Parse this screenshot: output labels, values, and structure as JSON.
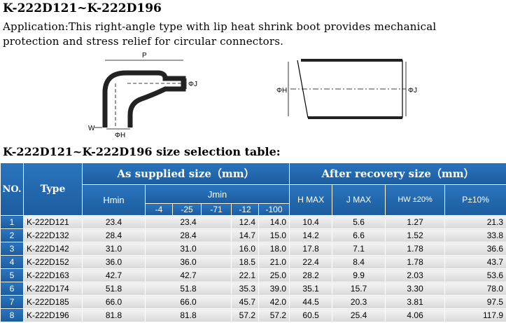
{
  "header": {
    "title": "K-222D121~K-222D196",
    "application": "Application:This right-angle type with lip heat shrink boot provides mechanical protection and stress relief for circular connectors."
  },
  "diagram_left": {
    "p": "P",
    "j": "ΦJ",
    "w": "W",
    "h": "ΦH"
  },
  "diagram_right": {
    "h": "ΦH",
    "j": "ΦJ"
  },
  "table": {
    "title": "K-222D121~K-222D196 size selection  table:",
    "headers": {
      "no": "NO.",
      "type": "Type",
      "supplied": "As supplied size（mm）",
      "hmin": "Hmin",
      "jmin": "Jmin",
      "j_sub": [
        "-4",
        "-25",
        "-71",
        "-12",
        "-100"
      ],
      "recovery": "After recovery size（mm）",
      "h": "H MAX",
      "j": "J MAX",
      "hw": "HW ±20%",
      "p": "P±10%"
    },
    "rows": [
      [
        "1",
        "K-222D121",
        "23.4",
        "23.4",
        "12.4",
        "14.0",
        "10.4",
        "5.6",
        "1.27",
        "21.3"
      ],
      [
        "2",
        "K-222D132",
        "28.4",
        "28.4",
        "14.7",
        "15.0",
        "14.2",
        "6.6",
        "1.52",
        "33.8"
      ],
      [
        "3",
        "K-222D142",
        "31.0",
        "31.0",
        "16.0",
        "18.0",
        "17.8",
        "7.1",
        "1.78",
        "36.6"
      ],
      [
        "4",
        "K-222D152",
        "36.0",
        "36.0",
        "18.5",
        "21.0",
        "22.4",
        "8.4",
        "1.78",
        "43.7"
      ],
      [
        "5",
        "K-222D163",
        "42.7",
        "42.7",
        "22.1",
        "25.0",
        "28.2",
        "9.9",
        "2.03",
        "53.6"
      ],
      [
        "6",
        "K-222D174",
        "51.8",
        "51.8",
        "35.3",
        "39.0",
        "35.1",
        "15.7",
        "3.30",
        "78.0"
      ],
      [
        "7",
        "K-222D185",
        "66.0",
        "66.0",
        "45.7",
        "42.0",
        "44.5",
        "20.3",
        "3.81",
        "97.5"
      ],
      [
        "8",
        "K-222D196",
        "81.8",
        "81.8",
        "57.2",
        "57.2",
        "60.5",
        "25.4",
        "4.06",
        "117.9"
      ]
    ]
  }
}
